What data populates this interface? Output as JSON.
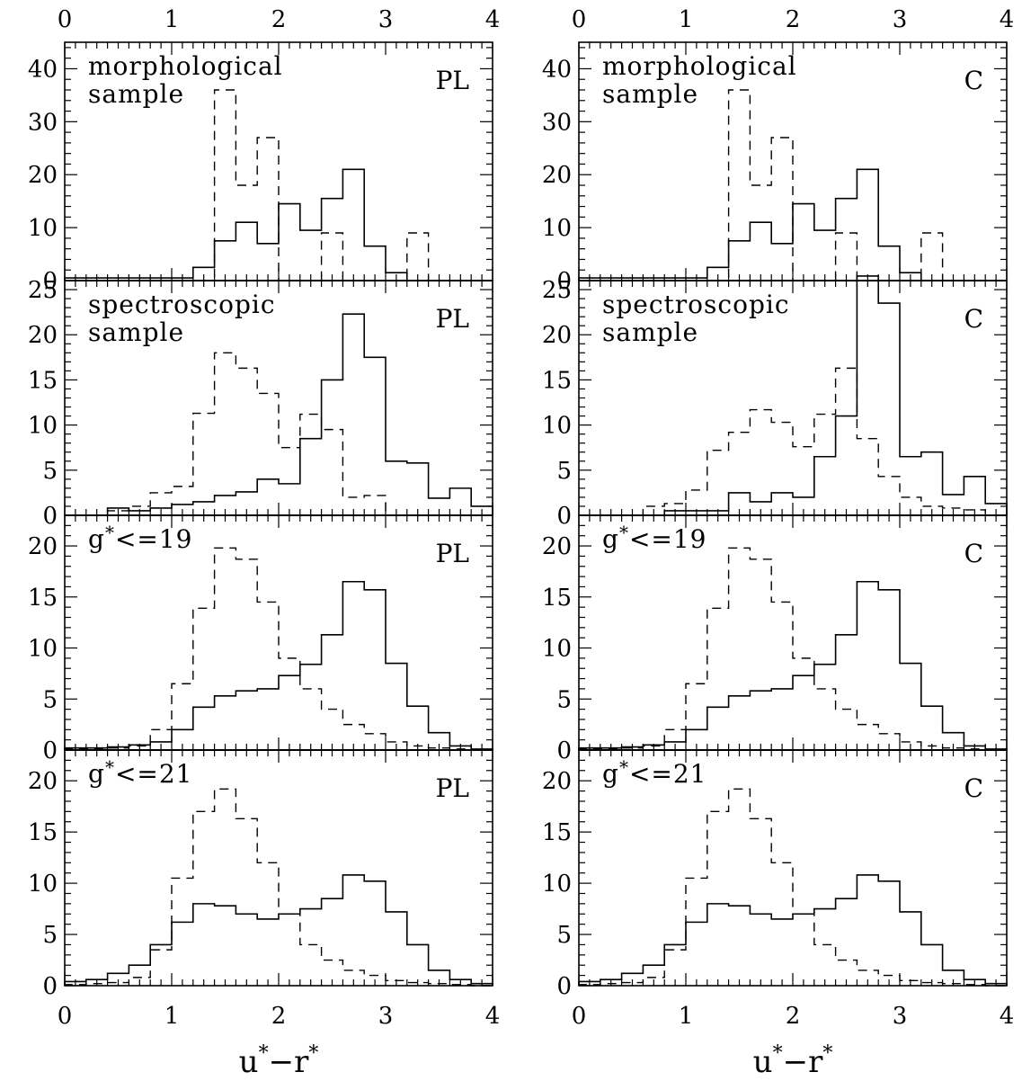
{
  "figure": {
    "x_axis_title": "u*−r*",
    "x_ticks": [
      0,
      1,
      2,
      3,
      4
    ]
  },
  "columns": [
    {
      "tag": "PL"
    },
    {
      "tag": "C"
    }
  ],
  "chart_data": [
    {
      "type": "bar",
      "title": "morphological sample",
      "panel_tag": "PL",
      "label_lines": [
        "morphological",
        "sample"
      ],
      "xlim": [
        0,
        4
      ],
      "ylim": [
        0,
        45
      ],
      "yticks": [
        0,
        10,
        20,
        30,
        40
      ],
      "bin_edges": [
        0,
        0.2,
        0.4,
        0.6,
        0.8,
        1.0,
        1.2,
        1.4,
        1.6,
        1.8,
        2.0,
        2.2,
        2.4,
        2.6,
        2.8,
        3.0,
        3.2,
        3.4,
        3.6,
        3.8,
        4.0
      ],
      "series": [
        {
          "style": "solid",
          "values": [
            0.5,
            0.5,
            0.5,
            0.5,
            0.5,
            0.5,
            2.5,
            7.5,
            11,
            7,
            14.5,
            9.5,
            15.5,
            21,
            6.5,
            1.5,
            0,
            0,
            0,
            0
          ]
        },
        {
          "style": "dashed",
          "values": [
            0,
            0,
            0,
            0,
            0,
            0,
            0,
            36,
            18,
            27,
            0,
            0,
            9,
            0,
            0,
            0,
            9,
            0,
            0,
            0
          ]
        }
      ]
    },
    {
      "type": "bar",
      "title": "morphological sample",
      "panel_tag": "C",
      "label_lines": [
        "morphological",
        "sample"
      ],
      "xlim": [
        0,
        4
      ],
      "ylim": [
        0,
        45
      ],
      "yticks": [
        0,
        10,
        20,
        30,
        40
      ],
      "bin_edges": [
        0,
        0.2,
        0.4,
        0.6,
        0.8,
        1.0,
        1.2,
        1.4,
        1.6,
        1.8,
        2.0,
        2.2,
        2.4,
        2.6,
        2.8,
        3.0,
        3.2,
        3.4,
        3.6,
        3.8,
        4.0
      ],
      "series": [
        {
          "style": "solid",
          "values": [
            0.5,
            0.5,
            0.5,
            0.5,
            0.5,
            0.5,
            2.5,
            7.5,
            11,
            7,
            14.5,
            9.5,
            15.5,
            21,
            6.5,
            1.5,
            0,
            0,
            0,
            0
          ]
        },
        {
          "style": "dashed",
          "values": [
            0,
            0,
            0,
            0,
            0,
            0,
            0,
            36,
            18,
            27,
            0,
            0,
            9,
            0,
            0,
            0,
            9,
            0,
            0,
            0
          ]
        }
      ]
    },
    {
      "type": "bar",
      "title": "spectroscopic sample",
      "panel_tag": "PL",
      "label_lines": [
        "spectroscopic",
        "sample"
      ],
      "xlim": [
        0,
        4
      ],
      "ylim": [
        0,
        26
      ],
      "yticks": [
        0,
        5,
        10,
        15,
        20,
        25
      ],
      "bin_edges": [
        0,
        0.2,
        0.4,
        0.6,
        0.8,
        1.0,
        1.2,
        1.4,
        1.6,
        1.8,
        2.0,
        2.2,
        2.4,
        2.6,
        2.8,
        3.0,
        3.2,
        3.4,
        3.6,
        3.8,
        4.0
      ],
      "series": [
        {
          "style": "solid",
          "values": [
            0,
            0,
            0.8,
            0.5,
            0.8,
            1.2,
            1.5,
            2.2,
            2.6,
            4,
            3.5,
            8.5,
            15,
            22.3,
            17.5,
            6,
            5.8,
            1.9,
            3,
            1
          ]
        },
        {
          "style": "dashed",
          "values": [
            0,
            0,
            0.5,
            1,
            2.5,
            3.2,
            11.3,
            18,
            16.3,
            13.5,
            7.5,
            11.2,
            9.5,
            2,
            2.2,
            0,
            0,
            0,
            0,
            0
          ]
        }
      ]
    },
    {
      "type": "bar",
      "title": "spectroscopic sample",
      "panel_tag": "C",
      "label_lines": [
        "spectroscopic",
        "sample"
      ],
      "xlim": [
        0,
        4
      ],
      "ylim": [
        0,
        26
      ],
      "yticks": [
        0,
        5,
        10,
        15,
        20,
        25
      ],
      "bin_edges": [
        0,
        0.2,
        0.4,
        0.6,
        0.8,
        1.0,
        1.2,
        1.4,
        1.6,
        1.8,
        2.0,
        2.2,
        2.4,
        2.6,
        2.8,
        3.0,
        3.2,
        3.4,
        3.6,
        3.8,
        4.0
      ],
      "series": [
        {
          "style": "solid",
          "values": [
            0,
            0,
            0,
            0,
            0.5,
            0.5,
            0.5,
            2.5,
            1.5,
            2.5,
            2,
            6.5,
            11,
            26.5,
            23.5,
            6.5,
            7,
            2.3,
            4.3,
            1.3
          ]
        },
        {
          "style": "dashed",
          "values": [
            0,
            0,
            0,
            1,
            1.3,
            2.8,
            7.2,
            9.2,
            11.7,
            10.3,
            7.6,
            11.2,
            16.3,
            8.5,
            4.3,
            2,
            1,
            0.8,
            0.6,
            0
          ]
        }
      ]
    },
    {
      "type": "bar",
      "title": "g*<=19",
      "panel_tag": "PL",
      "label_lines": [
        "g*<=19"
      ],
      "xlim": [
        0,
        4
      ],
      "ylim": [
        0,
        23
      ],
      "yticks": [
        0,
        5,
        10,
        15,
        20
      ],
      "bin_edges": [
        0,
        0.2,
        0.4,
        0.6,
        0.8,
        1.0,
        1.2,
        1.4,
        1.6,
        1.8,
        2.0,
        2.2,
        2.4,
        2.6,
        2.8,
        3.0,
        3.2,
        3.4,
        3.6,
        3.8,
        4.0
      ],
      "series": [
        {
          "style": "solid",
          "values": [
            0.2,
            0.2,
            0.3,
            0.5,
            0.8,
            2,
            4.2,
            5.3,
            5.8,
            6,
            7.3,
            8.4,
            11.3,
            16.5,
            15.7,
            8.5,
            4.3,
            1.7,
            0.4,
            0.1
          ]
        },
        {
          "style": "dashed",
          "values": [
            0.1,
            0.1,
            0.2,
            0.4,
            2,
            6.5,
            13.9,
            19.8,
            18.7,
            14.5,
            9,
            6,
            4,
            2.5,
            1.6,
            0.8,
            0.4,
            0.2,
            0.1,
            0
          ]
        }
      ]
    },
    {
      "type": "bar",
      "title": "g*<=19",
      "panel_tag": "C",
      "label_lines": [
        "g*<=19"
      ],
      "xlim": [
        0,
        4
      ],
      "ylim": [
        0,
        23
      ],
      "yticks": [
        0,
        5,
        10,
        15,
        20
      ],
      "bin_edges": [
        0,
        0.2,
        0.4,
        0.6,
        0.8,
        1.0,
        1.2,
        1.4,
        1.6,
        1.8,
        2.0,
        2.2,
        2.4,
        2.6,
        2.8,
        3.0,
        3.2,
        3.4,
        3.6,
        3.8,
        4.0
      ],
      "series": [
        {
          "style": "solid",
          "values": [
            0.2,
            0.2,
            0.3,
            0.5,
            0.8,
            2,
            4.2,
            5.3,
            5.8,
            6,
            7.3,
            8.4,
            11.3,
            16.5,
            15.7,
            8.5,
            4.3,
            1.7,
            0.4,
            0.1
          ]
        },
        {
          "style": "dashed",
          "values": [
            0.1,
            0.1,
            0.2,
            0.4,
            2,
            6.5,
            13.9,
            19.8,
            18.7,
            14.5,
            9,
            6,
            4,
            2.5,
            1.6,
            0.8,
            0.4,
            0.2,
            0.1,
            0
          ]
        }
      ]
    },
    {
      "type": "bar",
      "title": "g*<=21",
      "panel_tag": "PL",
      "label_lines": [
        "g*<=21"
      ],
      "xlim": [
        0,
        4
      ],
      "ylim": [
        0,
        23
      ],
      "yticks": [
        0,
        5,
        10,
        15,
        20
      ],
      "bin_edges": [
        0,
        0.2,
        0.4,
        0.6,
        0.8,
        1.0,
        1.2,
        1.4,
        1.6,
        1.8,
        2.0,
        2.2,
        2.4,
        2.6,
        2.8,
        3.0,
        3.2,
        3.4,
        3.6,
        3.8,
        4.0
      ],
      "series": [
        {
          "style": "solid",
          "values": [
            0.4,
            0.6,
            1.2,
            2,
            4,
            6.2,
            8,
            7.8,
            7,
            6.5,
            7,
            7.5,
            8.5,
            10.8,
            10.2,
            7.2,
            4,
            1.5,
            0.6,
            0.2
          ]
        },
        {
          "style": "dashed",
          "values": [
            0.1,
            0.2,
            0.3,
            0.8,
            3.5,
            10.5,
            17,
            19.2,
            16.3,
            12,
            7,
            4,
            2.5,
            1.5,
            1,
            0.5,
            0.3,
            0.2,
            0.1,
            0
          ]
        }
      ]
    },
    {
      "type": "bar",
      "title": "g*<=21",
      "panel_tag": "C",
      "label_lines": [
        "g*<=21"
      ],
      "xlim": [
        0,
        4
      ],
      "ylim": [
        0,
        23
      ],
      "yticks": [
        0,
        5,
        10,
        15,
        20
      ],
      "bin_edges": [
        0,
        0.2,
        0.4,
        0.6,
        0.8,
        1.0,
        1.2,
        1.4,
        1.6,
        1.8,
        2.0,
        2.2,
        2.4,
        2.6,
        2.8,
        3.0,
        3.2,
        3.4,
        3.6,
        3.8,
        4.0
      ],
      "series": [
        {
          "style": "solid",
          "values": [
            0.4,
            0.6,
            1.2,
            2,
            4,
            6.2,
            8,
            7.8,
            7,
            6.5,
            7,
            7.5,
            8.5,
            10.8,
            10.2,
            7.2,
            4,
            1.5,
            0.6,
            0.2
          ]
        },
        {
          "style": "dashed",
          "values": [
            0.1,
            0.2,
            0.3,
            0.8,
            3.5,
            10.5,
            17,
            19.2,
            16.3,
            12,
            7,
            4,
            2.5,
            1.5,
            1,
            0.5,
            0.3,
            0.2,
            0.1,
            0
          ]
        }
      ]
    }
  ]
}
